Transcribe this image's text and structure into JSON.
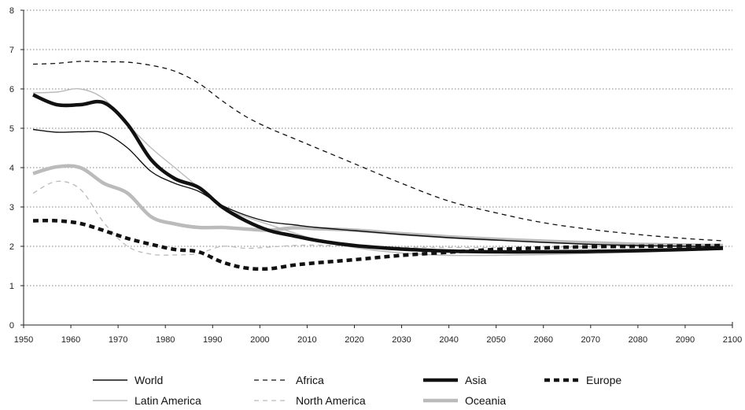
{
  "chart_data": {
    "type": "line",
    "title": "",
    "xlabel": "",
    "ylabel": "",
    "xlim": [
      1950,
      2100
    ],
    "ylim": [
      0,
      8
    ],
    "x_ticks": [
      1950,
      1960,
      1970,
      1980,
      1990,
      2000,
      2010,
      2020,
      2030,
      2040,
      2050,
      2060,
      2070,
      2080,
      2090,
      2100
    ],
    "y_ticks": [
      0,
      1,
      2,
      3,
      4,
      5,
      6,
      7,
      8
    ],
    "grid": "horizontal-dotted",
    "legend_position": "bottom",
    "series": [
      {
        "name": "World",
        "style": "solid-thin",
        "color": "#111111",
        "points": [
          [
            1952,
            4.97
          ],
          [
            1957,
            4.9
          ],
          [
            1962,
            4.91
          ],
          [
            1967,
            4.88
          ],
          [
            1972,
            4.5
          ],
          [
            1977,
            3.9
          ],
          [
            1982,
            3.6
          ],
          [
            1987,
            3.4
          ],
          [
            1992,
            3.04
          ],
          [
            1997,
            2.79
          ],
          [
            2002,
            2.62
          ],
          [
            2007,
            2.55
          ],
          [
            2012,
            2.48
          ],
          [
            2020,
            2.4
          ],
          [
            2030,
            2.3
          ],
          [
            2040,
            2.22
          ],
          [
            2050,
            2.16
          ],
          [
            2060,
            2.1
          ],
          [
            2070,
            2.05
          ],
          [
            2080,
            2.02
          ],
          [
            2090,
            2.0
          ],
          [
            2098,
            1.99
          ]
        ]
      },
      {
        "name": "Africa",
        "style": "dashed-thin",
        "color": "#111111",
        "points": [
          [
            1952,
            6.63
          ],
          [
            1957,
            6.65
          ],
          [
            1962,
            6.7
          ],
          [
            1967,
            6.69
          ],
          [
            1972,
            6.68
          ],
          [
            1977,
            6.6
          ],
          [
            1982,
            6.45
          ],
          [
            1987,
            6.15
          ],
          [
            1992,
            5.7
          ],
          [
            1997,
            5.3
          ],
          [
            2002,
            5.0
          ],
          [
            2007,
            4.75
          ],
          [
            2012,
            4.5
          ],
          [
            2020,
            4.1
          ],
          [
            2030,
            3.6
          ],
          [
            2040,
            3.15
          ],
          [
            2050,
            2.85
          ],
          [
            2060,
            2.6
          ],
          [
            2070,
            2.43
          ],
          [
            2080,
            2.3
          ],
          [
            2090,
            2.2
          ],
          [
            2098,
            2.14
          ]
        ]
      },
      {
        "name": "Asia",
        "style": "solid-thick",
        "color": "#111111",
        "points": [
          [
            1952,
            5.85
          ],
          [
            1957,
            5.6
          ],
          [
            1962,
            5.6
          ],
          [
            1967,
            5.65
          ],
          [
            1972,
            5.1
          ],
          [
            1977,
            4.2
          ],
          [
            1982,
            3.72
          ],
          [
            1987,
            3.5
          ],
          [
            1992,
            3.0
          ],
          [
            1997,
            2.65
          ],
          [
            2002,
            2.4
          ],
          [
            2007,
            2.27
          ],
          [
            2012,
            2.15
          ],
          [
            2020,
            2.02
          ],
          [
            2030,
            1.93
          ],
          [
            2040,
            1.88
          ],
          [
            2050,
            1.86
          ],
          [
            2060,
            1.86
          ],
          [
            2070,
            1.87
          ],
          [
            2080,
            1.89
          ],
          [
            2090,
            1.92
          ],
          [
            2098,
            1.95
          ]
        ]
      },
      {
        "name": "Europe",
        "style": "dashed-thick",
        "color": "#111111",
        "points": [
          [
            1952,
            2.65
          ],
          [
            1957,
            2.65
          ],
          [
            1962,
            2.58
          ],
          [
            1967,
            2.4
          ],
          [
            1972,
            2.2
          ],
          [
            1977,
            2.05
          ],
          [
            1982,
            1.92
          ],
          [
            1987,
            1.86
          ],
          [
            1992,
            1.6
          ],
          [
            1997,
            1.45
          ],
          [
            2002,
            1.43
          ],
          [
            2007,
            1.52
          ],
          [
            2012,
            1.58
          ],
          [
            2020,
            1.66
          ],
          [
            2030,
            1.77
          ],
          [
            2040,
            1.85
          ],
          [
            2050,
            1.92
          ],
          [
            2060,
            1.96
          ],
          [
            2070,
            1.99
          ],
          [
            2080,
            2.0
          ],
          [
            2090,
            2.01
          ],
          [
            2098,
            2.02
          ]
        ]
      },
      {
        "name": "Latin America",
        "style": "solid-thin",
        "color": "#bbbbbb",
        "points": [
          [
            1952,
            5.9
          ],
          [
            1957,
            5.92
          ],
          [
            1962,
            6.0
          ],
          [
            1967,
            5.75
          ],
          [
            1972,
            5.1
          ],
          [
            1977,
            4.5
          ],
          [
            1982,
            4.0
          ],
          [
            1987,
            3.5
          ],
          [
            1992,
            3.0
          ],
          [
            1997,
            2.75
          ],
          [
            2002,
            2.55
          ],
          [
            2007,
            2.35
          ],
          [
            2012,
            2.17
          ],
          [
            2020,
            1.97
          ],
          [
            2030,
            1.83
          ],
          [
            2040,
            1.77
          ],
          [
            2050,
            1.77
          ],
          [
            2060,
            1.79
          ],
          [
            2070,
            1.82
          ],
          [
            2080,
            1.85
          ],
          [
            2090,
            1.89
          ],
          [
            2098,
            1.93
          ]
        ]
      },
      {
        "name": "North America",
        "style": "dashed-thin",
        "color": "#bbbbbb",
        "points": [
          [
            1952,
            3.35
          ],
          [
            1957,
            3.65
          ],
          [
            1962,
            3.45
          ],
          [
            1967,
            2.6
          ],
          [
            1972,
            2.0
          ],
          [
            1977,
            1.8
          ],
          [
            1982,
            1.78
          ],
          [
            1987,
            1.82
          ],
          [
            1992,
            2.0
          ],
          [
            1997,
            1.95
          ],
          [
            2002,
            1.98
          ],
          [
            2007,
            2.02
          ],
          [
            2012,
            2.03
          ],
          [
            2020,
            2.0
          ],
          [
            2030,
            1.98
          ],
          [
            2040,
            1.97
          ],
          [
            2050,
            1.97
          ],
          [
            2060,
            1.98
          ],
          [
            2070,
            1.99
          ],
          [
            2080,
            2.0
          ],
          [
            2090,
            2.02
          ],
          [
            2098,
            2.03
          ]
        ]
      },
      {
        "name": "Oceania",
        "style": "solid-thick",
        "color": "#bbbbbb",
        "points": [
          [
            1952,
            3.85
          ],
          [
            1957,
            4.02
          ],
          [
            1962,
            4.0
          ],
          [
            1967,
            3.6
          ],
          [
            1972,
            3.35
          ],
          [
            1977,
            2.75
          ],
          [
            1982,
            2.57
          ],
          [
            1987,
            2.48
          ],
          [
            1992,
            2.48
          ],
          [
            1997,
            2.44
          ],
          [
            2002,
            2.41
          ],
          [
            2007,
            2.47
          ],
          [
            2012,
            2.45
          ],
          [
            2020,
            2.41
          ],
          [
            2030,
            2.32
          ],
          [
            2040,
            2.24
          ],
          [
            2050,
            2.18
          ],
          [
            2060,
            2.13
          ],
          [
            2070,
            2.09
          ],
          [
            2080,
            2.05
          ],
          [
            2090,
            2.03
          ],
          [
            2098,
            2.02
          ]
        ]
      }
    ]
  }
}
